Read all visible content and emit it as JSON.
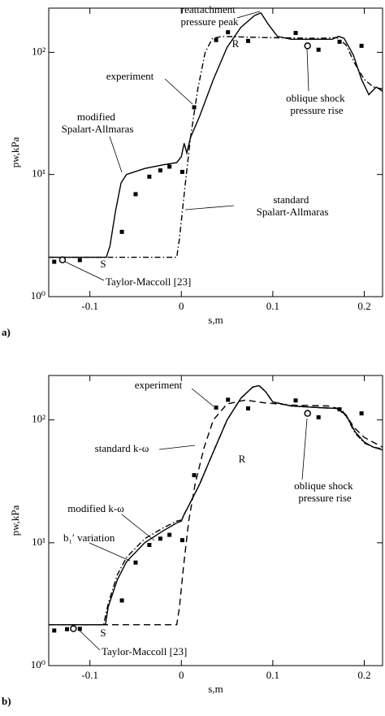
{
  "chart_data": [
    {
      "type": "line",
      "label": "a)",
      "xlabel": "s,m",
      "ylabel": "pw,kPa",
      "log_y": true,
      "xlim": [
        -0.145,
        0.22
      ],
      "ylim": [
        1,
        230
      ],
      "xticks": [
        -0.1,
        0,
        0.1,
        0.2
      ],
      "yticks": [
        {
          "value": 1,
          "label": "10⁰"
        },
        {
          "value": 10,
          "label": "10¹"
        },
        {
          "value": 100,
          "label": "10²"
        }
      ],
      "series": [
        {
          "name": "modified Spalart-Allmaras",
          "style": "solid",
          "color": "#000000",
          "x": [
            -0.145,
            -0.082,
            -0.078,
            -0.072,
            -0.066,
            -0.06,
            -0.04,
            -0.02,
            -0.005,
            0,
            0.003,
            0.006,
            0.01,
            0.02,
            0.035,
            0.05,
            0.065,
            0.08,
            0.087,
            0.095,
            0.105,
            0.12,
            0.15,
            0.165,
            0.172,
            0.178,
            0.188,
            0.197,
            0.205,
            0.213,
            0.22
          ],
          "values": [
            2.1,
            2.1,
            2.6,
            5,
            8.5,
            10,
            11.2,
            12,
            12.5,
            14,
            18,
            15,
            20,
            30,
            60,
            110,
            160,
            200,
            210,
            170,
            135,
            128,
            128,
            128,
            135,
            130,
            95,
            60,
            45,
            52,
            48
          ]
        },
        {
          "name": "standard Spalart-Allmaras",
          "style": "dashdot",
          "color": "#000000",
          "x": [
            -0.145,
            -0.005,
            -0.002,
            0.004,
            0.01,
            0.018,
            0.026,
            0.034,
            0.045,
            0.09,
            0.15,
            0.17,
            0.18,
            0.19,
            0.2,
            0.21,
            0.22
          ],
          "values": [
            2.1,
            2.1,
            3,
            8,
            20,
            50,
            100,
            130,
            135,
            132,
            130,
            132,
            115,
            80,
            60,
            52,
            50
          ]
        },
        {
          "name": "experiment",
          "style": "square",
          "color": "#000000",
          "x": [
            -0.139,
            -0.111,
            -0.065,
            -0.05,
            -0.035,
            -0.023,
            -0.013,
            0.001,
            0.014,
            0.038,
            0.051,
            0.073,
            0.125,
            0.15,
            0.173,
            0.197
          ],
          "values": [
            1.93,
            1.99,
            3.39,
            6.9,
            9.6,
            10.8,
            11.6,
            10.5,
            35.5,
            126,
            146,
            124,
            144,
            105,
            122,
            113
          ]
        },
        {
          "name": "Taylor-Maccoll [23]",
          "style": "circle",
          "color": "#000000",
          "x": [
            -0.13
          ],
          "values": [
            2.0
          ]
        },
        {
          "name": "oblique shock pressure rise",
          "style": "circle",
          "color": "#000000",
          "x": [
            0.138
          ],
          "values": [
            113
          ]
        }
      ],
      "annotations": [
        "reattachment pressure peak",
        "S",
        "R"
      ]
    },
    {
      "type": "line",
      "label": "b)",
      "xlabel": "s,m",
      "ylabel": "pw,kPa",
      "log_y": true,
      "xlim": [
        -0.145,
        0.22
      ],
      "ylim": [
        1,
        230
      ],
      "xticks": [
        -0.1,
        0,
        0.1,
        0.2
      ],
      "yticks": [
        {
          "value": 1,
          "label": "10⁰"
        },
        {
          "value": 10,
          "label": "10¹"
        },
        {
          "value": 100,
          "label": "10²"
        }
      ],
      "series": [
        {
          "name": "modified k-ω",
          "style": "solid",
          "color": "#000000",
          "x": [
            -0.145,
            -0.083,
            -0.08,
            -0.07,
            -0.06,
            -0.04,
            -0.02,
            -0.005,
            0,
            0.003,
            0.008,
            0.02,
            0.035,
            0.05,
            0.065,
            0.078,
            0.085,
            0.092,
            0.1,
            0.12,
            0.15,
            0.17,
            0.18,
            0.19,
            0.2,
            0.21,
            0.22
          ],
          "values": [
            2.15,
            2.15,
            3,
            5,
            7,
            10,
            12.5,
            14.5,
            15,
            17,
            20,
            30,
            55,
            100,
            150,
            185,
            190,
            170,
            140,
            130,
            126,
            124,
            110,
            80,
            66,
            60,
            57
          ]
        },
        {
          "name": "standard k-ω",
          "style": "dash",
          "color": "#000000",
          "x": [
            -0.145,
            -0.005,
            -0.002,
            0.002,
            0.008,
            0.015,
            0.025,
            0.035,
            0.05,
            0.07,
            0.09,
            0.12,
            0.16,
            0.175,
            0.19,
            0.2,
            0.22
          ],
          "values": [
            2.15,
            2.15,
            3,
            6,
            15,
            30,
            60,
            100,
            135,
            145,
            138,
            132,
            130,
            122,
            85,
            72,
            60
          ]
        },
        {
          "name": "b₁′ variation",
          "style": "dashdot",
          "color": "#000000",
          "x": [
            -0.145,
            -0.085,
            -0.08,
            -0.07,
            -0.06,
            -0.04,
            -0.02,
            -0.005,
            0,
            0.003,
            0.008,
            0.02,
            0.035,
            0.05,
            0.065,
            0.078,
            0.085,
            0.092,
            0.1,
            0.12,
            0.15,
            0.17,
            0.18,
            0.19,
            0.2,
            0.21,
            0.22
          ],
          "values": [
            2.15,
            2.15,
            3.2,
            5.5,
            7.6,
            10.8,
            13.2,
            15,
            15.3,
            17,
            20,
            30,
            55,
            100,
            150,
            185,
            190,
            170,
            140,
            130,
            126,
            124,
            108,
            78,
            65,
            60,
            58
          ]
        },
        {
          "name": "experiment",
          "style": "square",
          "color": "#000000",
          "x": [
            -0.139,
            -0.125,
            -0.111,
            -0.065,
            -0.05,
            -0.035,
            -0.023,
            -0.013,
            0.001,
            0.014,
            0.038,
            0.051,
            0.073,
            0.125,
            0.15,
            0.173,
            0.197
          ],
          "values": [
            1.93,
            1.98,
            1.99,
            3.39,
            6.9,
            9.6,
            10.8,
            11.6,
            10.5,
            35.5,
            126,
            146,
            124,
            144,
            105,
            122,
            113
          ]
        },
        {
          "name": "Taylor-Maccoll [23]",
          "style": "circle",
          "color": "#000000",
          "x": [
            -0.118
          ],
          "values": [
            2.0
          ]
        },
        {
          "name": "oblique shock pressure rise",
          "style": "circle",
          "color": "#000000",
          "x": [
            0.138
          ],
          "values": [
            113
          ]
        }
      ],
      "annotations": [
        "experiment",
        "S",
        "R"
      ]
    }
  ]
}
